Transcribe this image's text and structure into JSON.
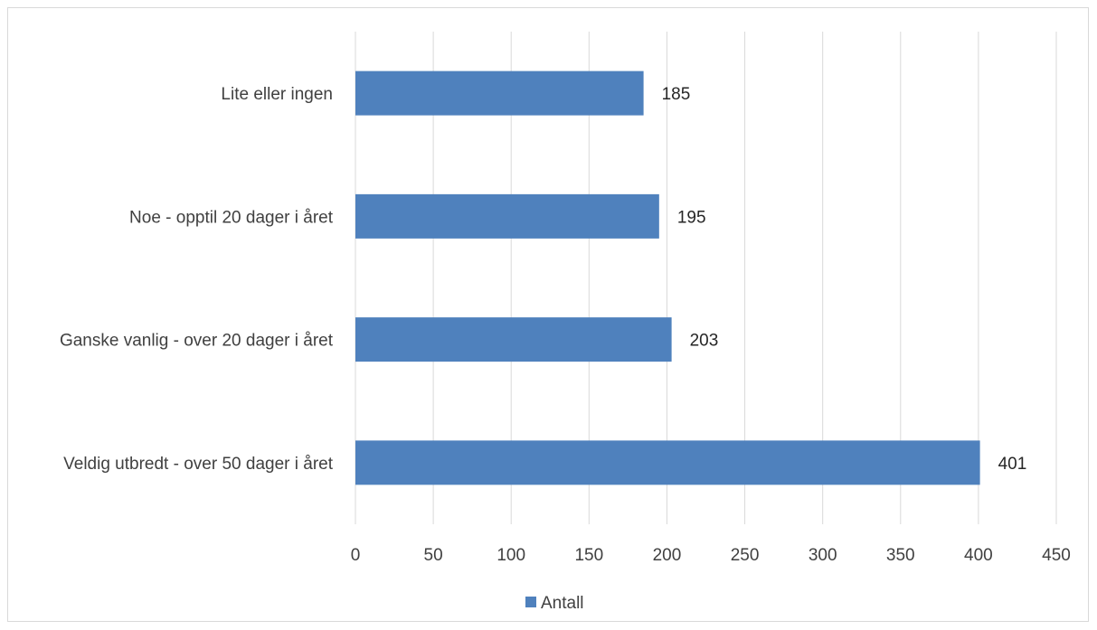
{
  "chart_data": {
    "type": "bar",
    "orientation": "horizontal",
    "categories": [
      "Lite eller ingen",
      "Noe - opptil 20 dager i året",
      "Ganske vanlig - over 20 dager i året",
      "Veldig utbredt - over 50 dager i året"
    ],
    "series": [
      {
        "name": "Antall",
        "values": [
          185,
          195,
          203,
          401
        ],
        "color": "#4f81bd"
      }
    ],
    "xlim": [
      0,
      450
    ],
    "ticks": [
      0,
      50,
      100,
      150,
      200,
      250,
      300,
      350,
      400,
      450
    ],
    "tick_labels": [
      "0",
      "50",
      "100",
      "150",
      "200",
      "250",
      "300",
      "350",
      "400",
      "450"
    ],
    "data_labels": [
      "185",
      "195",
      "203",
      "401"
    ],
    "grid": true,
    "grid_color": "#d9d9d9",
    "legend_position": "bottom",
    "title": "",
    "xlabel": "",
    "ylabel": ""
  }
}
